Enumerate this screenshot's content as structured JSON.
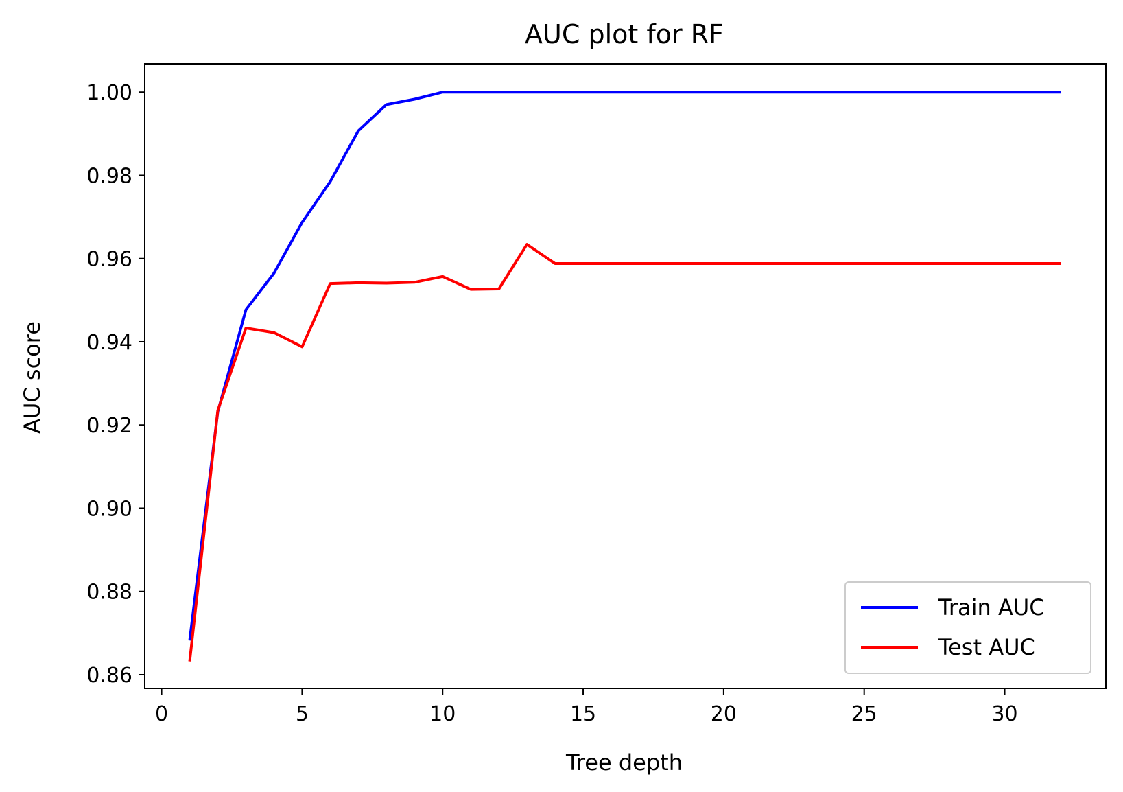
{
  "chart_data": {
    "type": "line",
    "title": "AUC plot for RF",
    "xlabel": "Tree depth",
    "ylabel": "AUC score",
    "xlim": [
      -0.6,
      33.6
    ],
    "ylim": [
      0.8567,
      1.0068
    ],
    "xticks": [
      0,
      5,
      10,
      15,
      20,
      25,
      30
    ],
    "yticks": [
      0.86,
      0.88,
      0.9,
      0.92,
      0.94,
      0.96,
      0.98,
      1.0
    ],
    "x": [
      1,
      2,
      3,
      4,
      5,
      6,
      7,
      8,
      9,
      10,
      11,
      12,
      13,
      14,
      15,
      16,
      17,
      18,
      19,
      20,
      21,
      22,
      23,
      24,
      25,
      26,
      27,
      28,
      29,
      30,
      31,
      32
    ],
    "grid": false,
    "legend_position": "lower right",
    "series": [
      {
        "name": "Train AUC",
        "color": "#0000ff",
        "values": [
          0.8682,
          0.9232,
          0.9477,
          0.9565,
          0.9687,
          0.9785,
          0.9907,
          0.997,
          0.9983,
          1.0,
          1.0,
          1.0,
          1.0,
          1.0,
          1.0,
          1.0,
          1.0,
          1.0,
          1.0,
          1.0,
          1.0,
          1.0,
          1.0,
          1.0,
          1.0,
          1.0,
          1.0,
          1.0,
          1.0,
          1.0,
          1.0,
          1.0
        ]
      },
      {
        "name": "Test AUC",
        "color": "#ff0000",
        "values": [
          0.8632,
          0.9235,
          0.9433,
          0.9422,
          0.9388,
          0.954,
          0.9542,
          0.9541,
          0.9543,
          0.9557,
          0.9526,
          0.9527,
          0.9634,
          0.9588,
          0.9588,
          0.9588,
          0.9588,
          0.9588,
          0.9588,
          0.9588,
          0.9588,
          0.9588,
          0.9588,
          0.9588,
          0.9588,
          0.9588,
          0.9588,
          0.9588,
          0.9588,
          0.9588,
          0.9588,
          0.9588
        ]
      }
    ]
  }
}
